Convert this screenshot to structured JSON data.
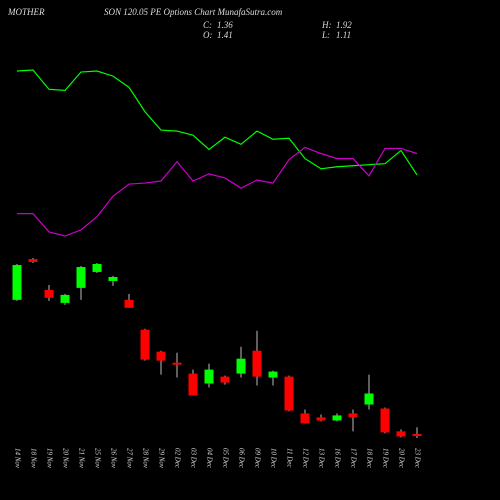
{
  "chart_data": {
    "type": "candlestick",
    "title": [
      "MOTHER",
      "SON 120.05 PE Options Chart MunafaSutra.com"
    ],
    "header_labels": {
      "close": "C:",
      "high": "H:",
      "open": "O:",
      "low": "L:"
    },
    "last": {
      "close": 1.36,
      "high": 1.92,
      "open": 1.41,
      "low": 1.11
    },
    "categories": [
      "14 Nov",
      "18 Nov",
      "19 Nov",
      "20 Nov",
      "21 Nov",
      "25 Nov",
      "26 Nov",
      "27 Nov",
      "28 Nov",
      "29 Nov",
      "02 Dec",
      "03 Dec",
      "04 Dec",
      "05 Dec",
      "06 Dec",
      "09 Dec",
      "10 Dec",
      "11 Dec",
      "12 Dec",
      "13 Dec",
      "16 Dec",
      "17 Dec",
      "18 Dec",
      "19 Dec",
      "20 Dec",
      "23 Dec"
    ],
    "open": [
      11.51,
      14.58,
      12.26,
      11.28,
      12.41,
      13.61,
      12.93,
      11.51,
      9.26,
      7.61,
      6.78,
      5.96,
      5.21,
      5.73,
      5.96,
      7.68,
      5.66,
      5.73,
      2.96,
      2.66,
      2.43,
      2.96,
      3.63,
      3.33,
      1.61,
      1.41
    ],
    "close": [
      14.13,
      14.36,
      11.66,
      11.88,
      13.98,
      14.21,
      13.23,
      10.91,
      7.01,
      6.93,
      6.63,
      4.31,
      6.26,
      5.28,
      7.08,
      5.73,
      6.11,
      3.18,
      2.21,
      2.43,
      2.81,
      2.66,
      4.46,
      1.53,
      1.23,
      1.36
    ],
    "high": [
      14.21,
      14.66,
      12.63,
      11.96,
      14.06,
      14.28,
      13.31,
      11.96,
      9.33,
      7.68,
      7.53,
      6.26,
      6.71,
      5.81,
      7.98,
      9.18,
      6.18,
      5.81,
      3.26,
      2.88,
      2.96,
      3.26,
      5.88,
      3.41,
      1.76,
      1.92
    ],
    "low": [
      11.43,
      14.28,
      11.43,
      11.13,
      11.51,
      13.53,
      12.56,
      10.91,
      6.93,
      5.88,
      5.66,
      4.31,
      4.91,
      5.13,
      5.66,
      5.06,
      5.06,
      3.11,
      2.21,
      2.36,
      2.36,
      1.61,
      3.26,
      1.46,
      1.16,
      1.11
    ],
    "up_color": "#00ff00",
    "down_color": "#ff0000",
    "lines": [
      {
        "color": "#00ff00",
        "values": [
          178,
          179,
          160,
          159,
          177,
          178,
          173,
          162,
          138,
          120,
          119,
          115,
          101,
          113,
          106,
          119,
          111,
          112,
          92,
          82,
          84,
          85,
          86,
          87,
          100,
          76
        ]
      },
      {
        "color": "#cc00cc",
        "values": [
          38,
          38,
          20,
          16,
          22,
          35,
          55,
          67,
          68,
          70,
          89,
          70,
          77,
          73,
          63,
          71,
          68,
          91,
          103,
          97,
          92,
          92,
          75,
          102,
          102,
          97
        ]
      }
    ]
  }
}
